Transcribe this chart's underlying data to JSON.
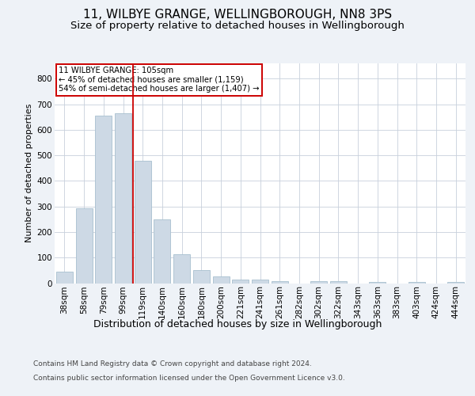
{
  "title1": "11, WILBYE GRANGE, WELLINGBOROUGH, NN8 3PS",
  "title2": "Size of property relative to detached houses in Wellingborough",
  "xlabel": "Distribution of detached houses by size in Wellingborough",
  "ylabel": "Number of detached properties",
  "footer1": "Contains HM Land Registry data © Crown copyright and database right 2024.",
  "footer2": "Contains public sector information licensed under the Open Government Licence v3.0.",
  "annotation_title": "11 WILBYE GRANGE: 105sqm",
  "annotation_line1": "← 45% of detached houses are smaller (1,159)",
  "annotation_line2": "54% of semi-detached houses are larger (1,407) →",
  "bar_labels": [
    "38sqm",
    "58sqm",
    "79sqm",
    "99sqm",
    "119sqm",
    "140sqm",
    "160sqm",
    "180sqm",
    "200sqm",
    "221sqm",
    "241sqm",
    "261sqm",
    "282sqm",
    "302sqm",
    "322sqm",
    "343sqm",
    "363sqm",
    "383sqm",
    "403sqm",
    "424sqm",
    "444sqm"
  ],
  "bar_values": [
    45,
    293,
    655,
    665,
    479,
    251,
    113,
    50,
    25,
    13,
    13,
    8,
    0,
    8,
    8,
    0,
    5,
    0,
    5,
    0,
    5
  ],
  "bar_color": "#cdd9e5",
  "bar_edgecolor": "#a8bfcf",
  "red_line_x": 3.5,
  "ylim": [
    0,
    860
  ],
  "yticks": [
    0,
    100,
    200,
    300,
    400,
    500,
    600,
    700,
    800
  ],
  "background_color": "#eef2f7",
  "plot_bg_color": "#ffffff",
  "grid_color": "#c8d0dc",
  "title1_fontsize": 11,
  "title2_fontsize": 9.5,
  "xlabel_fontsize": 9,
  "ylabel_fontsize": 8,
  "tick_fontsize": 7.5,
  "annotation_box_color": "#ffffff",
  "annotation_box_edgecolor": "#cc0000",
  "red_line_color": "#cc0000",
  "footer_fontsize": 6.5,
  "footer_color": "#444444"
}
